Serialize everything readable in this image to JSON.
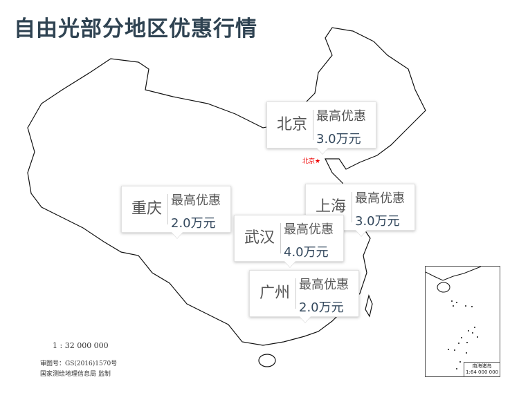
{
  "title": "自由光部分地区优惠行情",
  "capital_marker": "北京★",
  "callouts": [
    {
      "city": "北京",
      "label": "最高优惠",
      "value": "3.0万元"
    },
    {
      "city": "重庆",
      "label": "最高优惠",
      "value": "2.0万元"
    },
    {
      "city": "上海",
      "label": "最高优惠",
      "value": "3.0万元"
    },
    {
      "city": "武汉",
      "label": "最高优惠",
      "value": "4.0万元"
    },
    {
      "city": "广州",
      "label": "最高优惠",
      "value": "2.0万元"
    }
  ],
  "map_notes": {
    "scale": "1 : 32 000 000",
    "approval": "审图号：GS(2016)1570号",
    "publisher": "国家测绘地理信息局 监制"
  },
  "inset": {
    "name": "南海诸岛",
    "scale": "1:64 000 000"
  },
  "colors": {
    "title": "#2f4352",
    "value": "#34495e",
    "capital": "#e00000"
  }
}
